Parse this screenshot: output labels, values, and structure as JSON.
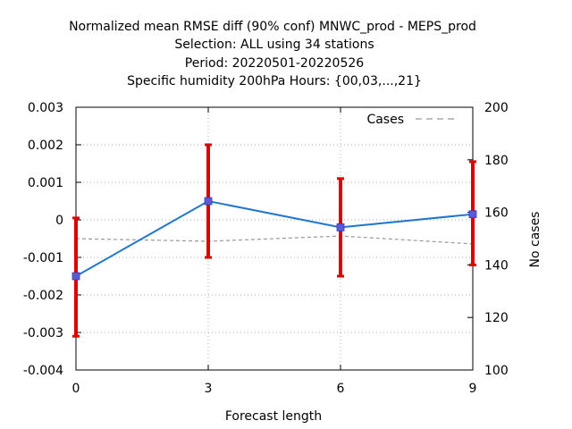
{
  "chart_data": {
    "type": "line",
    "title": [
      "Normalized mean RMSE diff (90% conf) MNWC_prod - MEPS_prod",
      "Selection: ALL using    34 stations",
      "Period: 20220501-20220526",
      "Specific humidity 200hPa   Hours: {00,03,...,21}"
    ],
    "xlabel": "Forecast length",
    "ylabel_right": "No cases",
    "x_ticks": [
      "0",
      "3",
      "6",
      "9"
    ],
    "y_ticks": [
      "0.003",
      "0.002",
      "0.001",
      "0",
      "-0.001",
      "-0.002",
      "-0.003",
      "-0.004"
    ],
    "y2_ticks": [
      "200",
      "180",
      "160",
      "140",
      "120",
      "100"
    ],
    "xlim": [
      0,
      9
    ],
    "ylim": [
      -0.004,
      0.003
    ],
    "y2lim": [
      100,
      200
    ],
    "grid": true,
    "legend_position": "top-right",
    "series": [
      {
        "kind": "main",
        "axis": "left",
        "color": "#1f77d0",
        "marker_color": "#5b5bd8",
        "x": [
          0,
          3,
          6,
          9
        ],
        "y": [
          -0.0015,
          0.0005,
          -0.0002,
          0.00015
        ],
        "error_low": [
          -0.0031,
          -0.001,
          -0.0015,
          -0.0012
        ],
        "error_high": [
          5e-05,
          0.002,
          0.0011,
          0.00155
        ],
        "error_color": "#dd0000"
      },
      {
        "kind": "cases",
        "name": "Cases",
        "axis": "right",
        "color": "#999999",
        "x": [
          0,
          3,
          6,
          9
        ],
        "y": [
          150,
          149,
          151,
          148
        ]
      }
    ]
  }
}
